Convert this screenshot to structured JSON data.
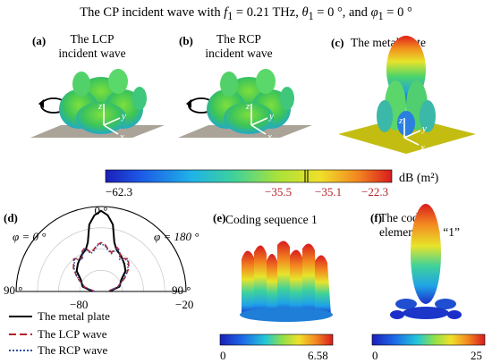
{
  "title": {
    "text_a": "The CP incident wave with ",
    "f": "f",
    "f_sub": "1",
    "text_b": " = 0.21 THz, ",
    "theta": "θ",
    "theta_sub": "1",
    "text_c": " = 0 °, and ",
    "phi": "φ",
    "phi_sub": "1",
    "text_d": " = 0 °"
  },
  "panels": {
    "a": {
      "label": "(a)",
      "title_line1": "The LCP",
      "title_line2": "incident wave"
    },
    "b": {
      "label": "(b)",
      "title_line1": "The RCP",
      "title_line2": "incident wave"
    },
    "c": {
      "label": "(c)",
      "title": "The metal plate"
    },
    "d": {
      "label": "(d)"
    },
    "e": {
      "label": "(e)",
      "title": "Coding sequence 1"
    },
    "f": {
      "label": "(f)",
      "title_line1": "The coding",
      "title_line2": "elements  are “1”"
    }
  },
  "axes_3d": {
    "z": "z",
    "y": "y",
    "x": "x"
  },
  "main_colorbar": {
    "unit": "dB (m²)",
    "ticks": [
      "−62.3",
      "−35.5",
      "−35.1",
      "−22.3"
    ],
    "tick_colors": [
      "#000000",
      "#b5202a",
      "#b5202a",
      "#b5202a"
    ]
  },
  "colorbar_e": {
    "min": "0",
    "max": "6.58"
  },
  "colorbar_f": {
    "min": "0",
    "max": "25"
  },
  "chart_data": {
    "type": "line",
    "polar": true,
    "angle_labels": {
      "top": "0 °",
      "left": "90 °",
      "right": "90 °"
    },
    "phi_labels": {
      "left": "φ = 0 °",
      "right": "φ = 180 °"
    },
    "radial_ticks": [
      "−80",
      "−20"
    ],
    "rlim": [
      -100,
      -20
    ],
    "angles": [
      -90,
      -75,
      -60,
      -50,
      -40,
      -30,
      -25,
      -20,
      -15,
      -10,
      -5,
      0,
      5,
      10,
      15,
      20,
      25,
      30,
      40,
      50,
      60,
      75,
      90
    ],
    "series": [
      {
        "name": "The metal plate",
        "color": "#000000",
        "dash": "solid",
        "values": [
          -92,
          -82,
          -78,
          -70,
          -66,
          -62,
          -60,
          -58,
          -52,
          -36,
          -28,
          -24,
          -28,
          -36,
          -52,
          -58,
          -60,
          -62,
          -66,
          -70,
          -78,
          -82,
          -92
        ]
      },
      {
        "name": "The LCP wave",
        "color": "#b5202a",
        "dash": "dashed",
        "values": [
          -94,
          -84,
          -74,
          -66,
          -60,
          -64,
          -58,
          -56,
          -62,
          -60,
          -56,
          -54,
          -56,
          -60,
          -62,
          -56,
          -58,
          -64,
          -60,
          -66,
          -74,
          -84,
          -94
        ]
      },
      {
        "name": "The RCP wave",
        "color": "#2b4fa3",
        "dash": "dotted",
        "values": [
          -94,
          -84,
          -75,
          -67,
          -61,
          -65,
          -59,
          -57,
          -63,
          -61,
          -57,
          -55,
          -57,
          -61,
          -63,
          -57,
          -59,
          -65,
          -61,
          -67,
          -75,
          -84,
          -94
        ]
      }
    ]
  }
}
